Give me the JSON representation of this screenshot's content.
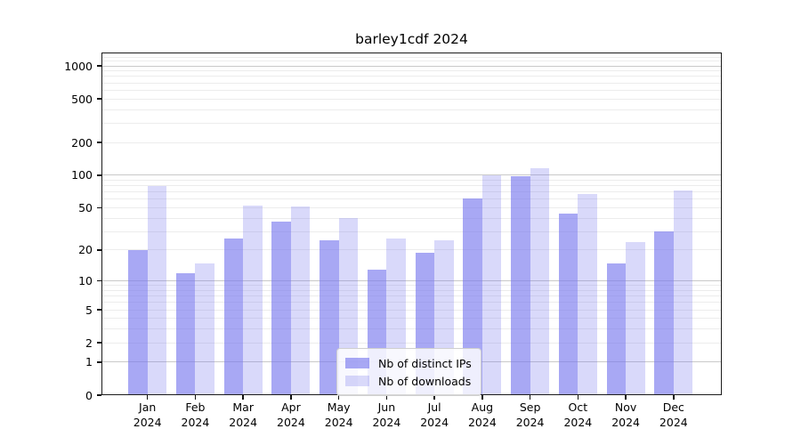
{
  "title": "barley1cdf 2024",
  "chart_data": {
    "type": "bar",
    "title": "barley1cdf 2024",
    "xlabel": "",
    "ylabel": "",
    "year_label": "2024",
    "categories": [
      "Jan",
      "Feb",
      "Mar",
      "Apr",
      "May",
      "Jun",
      "Jul",
      "Aug",
      "Sep",
      "Oct",
      "Nov",
      "Dec"
    ],
    "series": [
      {
        "name": "Nb of distinct IPs",
        "color": "rgba(119,119,238,0.64)",
        "values": [
          20,
          12,
          26,
          37,
          25,
          13,
          19,
          61,
          97,
          44,
          15,
          30
        ]
      },
      {
        "name": "Nb of downloads",
        "color": "rgba(119,119,238,0.28)",
        "values": [
          79,
          15,
          52,
          51,
          40,
          26,
          25,
          100,
          116,
          67,
          24,
          72
        ]
      }
    ],
    "yscale": "log1p",
    "ylim": [
      0,
      1300
    ],
    "yticks": [
      0,
      1,
      2,
      5,
      10,
      20,
      50,
      100,
      200,
      500,
      1000
    ],
    "gridlines": {
      "major": [
        1,
        10,
        100,
        1000
      ],
      "minor": [
        2,
        3,
        4,
        5,
        6,
        7,
        8,
        9,
        20,
        30,
        40,
        50,
        60,
        70,
        80,
        90,
        200,
        300,
        400,
        500,
        600,
        700,
        800,
        900,
        1100,
        1200
      ]
    },
    "legend": {
      "position": "lower center",
      "entries": [
        "Nb of distinct IPs",
        "Nb of downloads"
      ]
    },
    "colors": {
      "bar_base": "#7777ee",
      "grid_major": "#c9c9c9",
      "grid_minor": "#ececec",
      "spine": "#1c1c1c"
    }
  }
}
